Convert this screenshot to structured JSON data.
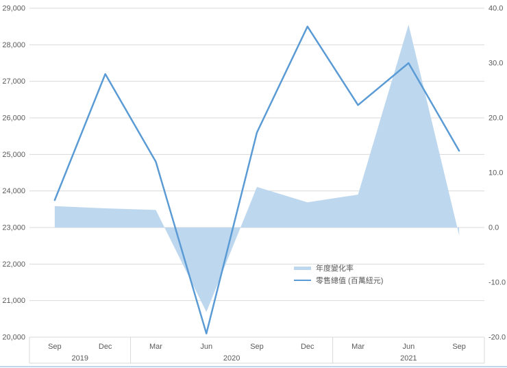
{
  "chart_data": {
    "type": "combo",
    "title": "",
    "categories": [
      "Sep",
      "Dec",
      "Mar",
      "Jun",
      "Sep",
      "Dec",
      "Mar",
      "Jun",
      "Sep"
    ],
    "category_year_groups": [
      {
        "year": "2019",
        "quarter_count": 2
      },
      {
        "year": "2020",
        "quarter_count": 4
      },
      {
        "year": "2021",
        "quarter_count": 3
      }
    ],
    "series": [
      {
        "name": "年度變化率",
        "type": "area",
        "axis": "right",
        "color": "#BDD7EE",
        "values": [
          3.9,
          3.5,
          3.2,
          -15.4,
          7.4,
          4.6,
          6.0,
          37.0,
          -1.4
        ]
      },
      {
        "name": "零售總值 (百萬紐元)",
        "type": "line",
        "axis": "left",
        "color": "#5B9BD5",
        "values": [
          23750,
          27200,
          24800,
          20100,
          25600,
          28500,
          26350,
          27500,
          25100
        ]
      }
    ],
    "left_axis": {
      "min": 20000,
      "max": 29000,
      "step": 1000,
      "tick_labels": [
        "29,000",
        "28,000",
        "27,000",
        "26,000",
        "25,000",
        "24,000",
        "23,000",
        "22,000",
        "21,000",
        "20,000"
      ]
    },
    "right_axis": {
      "min": -20,
      "max": 40,
      "step": 10,
      "tick_labels": [
        "40.0",
        "30.0",
        "20.0",
        "10.0",
        "0.0",
        "-10.0",
        "-20.0"
      ]
    },
    "grid": true,
    "legend_position": "inside-right-center"
  },
  "colors": {
    "line": "#5B9BD5",
    "area": "#BDD7EE",
    "grid": "#D9D9D9",
    "axis_text": "#595959",
    "background": "#FFFFFF",
    "window_border": "#BDD7EE"
  }
}
